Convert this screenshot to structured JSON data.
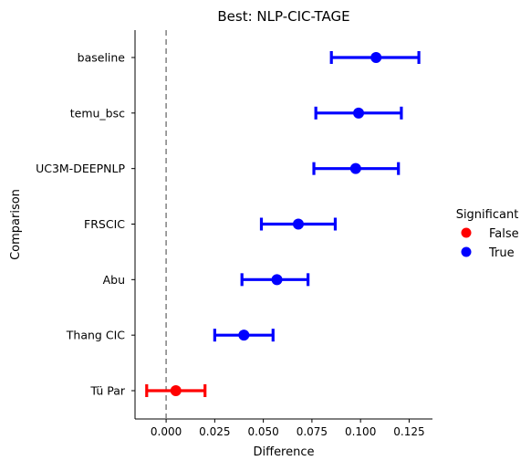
{
  "chart_data": {
    "type": "scatter",
    "title": "Best: NLP-CIC-TAGE",
    "xlabel": "Difference",
    "ylabel": "Comparison",
    "xlim": [
      -0.016,
      0.137
    ],
    "xticks": [
      "0.000",
      "0.025",
      "0.050",
      "0.075",
      "0.100",
      "0.125"
    ],
    "reference_line_x": 0.0,
    "legend": {
      "title": "Significant",
      "placement": "right",
      "entries": [
        {
          "label": "False",
          "color": "#ff0000"
        },
        {
          "label": "True",
          "color": "#0000ff"
        }
      ]
    },
    "points": [
      {
        "label": "baseline",
        "estimate": 0.108,
        "low": 0.085,
        "high": 0.13,
        "significant": true
      },
      {
        "label": "temu_bsc",
        "estimate": 0.099,
        "low": 0.077,
        "high": 0.121,
        "significant": true
      },
      {
        "label": "UC3M-DEEPNLP",
        "estimate": 0.0975,
        "low": 0.076,
        "high": 0.1195,
        "significant": true
      },
      {
        "label": "FRSCIC",
        "estimate": 0.068,
        "low": 0.049,
        "high": 0.087,
        "significant": true
      },
      {
        "label": "Abu",
        "estimate": 0.057,
        "low": 0.039,
        "high": 0.073,
        "significant": true
      },
      {
        "label": "Thang CIC",
        "estimate": 0.04,
        "low": 0.025,
        "high": 0.055,
        "significant": true
      },
      {
        "label": "Tü Par",
        "estimate": 0.005,
        "low": -0.01,
        "high": 0.02,
        "significant": false
      }
    ]
  }
}
